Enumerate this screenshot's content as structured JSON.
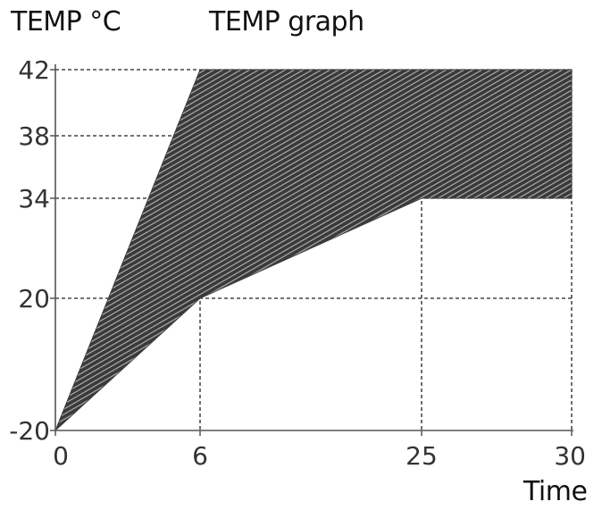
{
  "chart_data": {
    "type": "area",
    "ylabel": "TEMP °C",
    "title": "TEMP graph",
    "xlabel": "Time",
    "x_ticks": [
      0,
      6,
      25,
      30
    ],
    "y_ticks": [
      -20,
      20,
      34,
      38,
      42
    ],
    "x_tick_labels": [
      "0",
      "6",
      "25",
      "30"
    ],
    "y_tick_labels": [
      "-20",
      "20",
      "34",
      "38",
      "42"
    ],
    "upper_boundary": {
      "x": [
        0,
        6,
        30
      ],
      "y": [
        -20,
        42,
        42
      ]
    },
    "lower_boundary": {
      "x": [
        0,
        6,
        25,
        30
      ],
      "y": [
        -20,
        20,
        34,
        34
      ]
    },
    "fill_color": "#404040",
    "grid": true
  }
}
